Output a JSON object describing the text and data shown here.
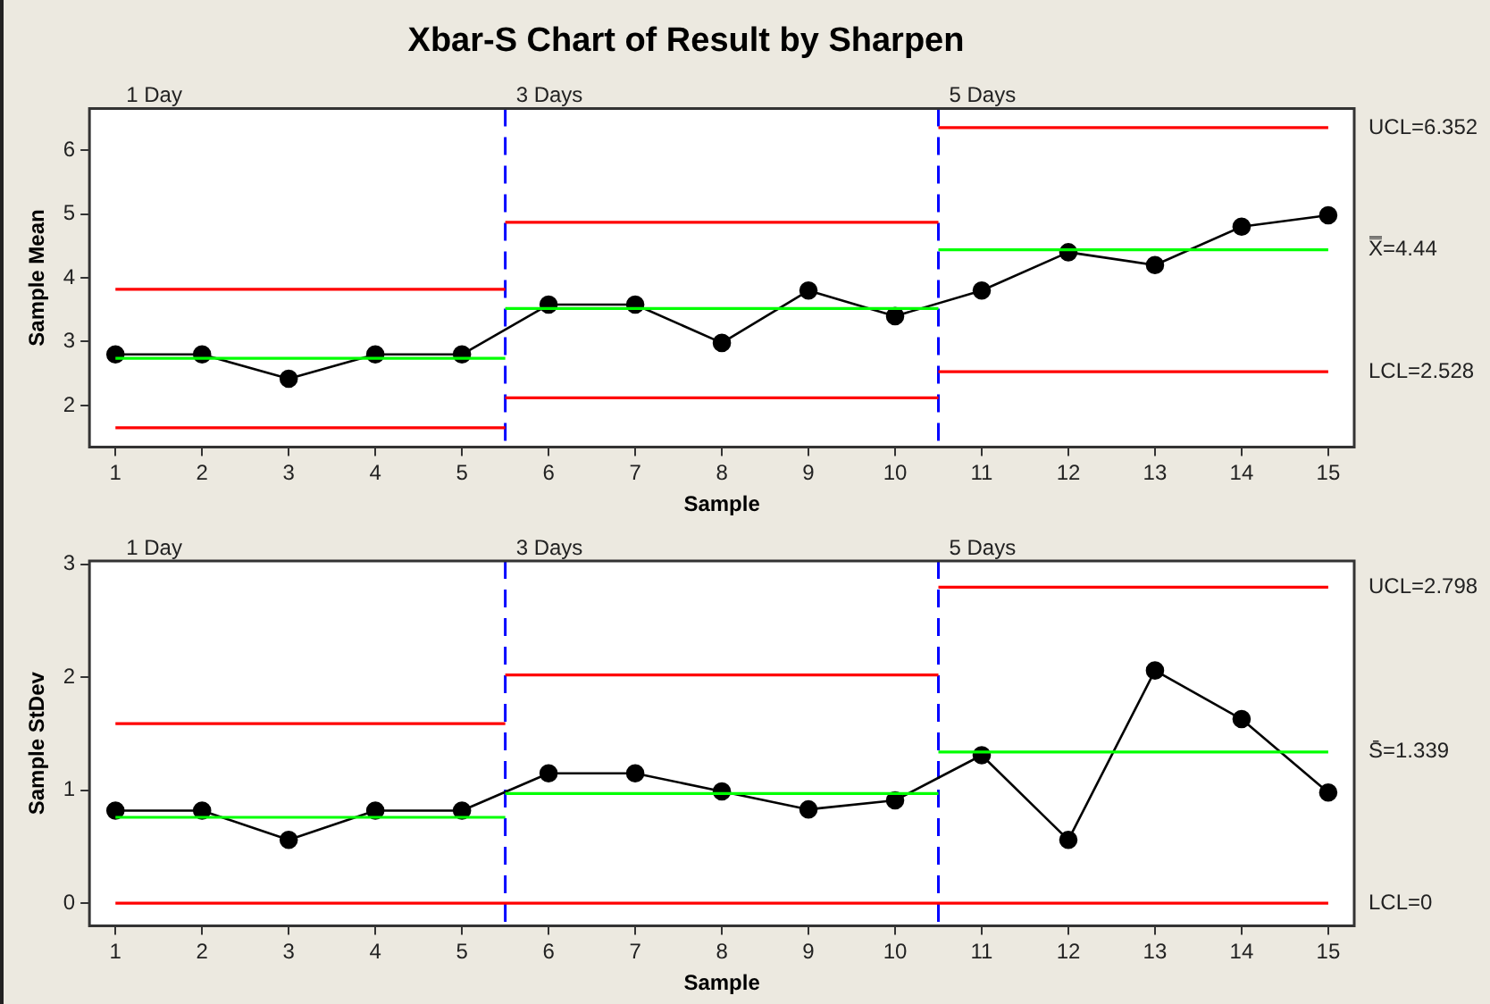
{
  "chart_data": [
    {
      "type": "line",
      "title": "Xbar-S Chart of Result by Sharpen",
      "xlabel": "Sample",
      "ylabel": "Sample Mean",
      "xlim": [
        0.7,
        15.3
      ],
      "xticks": [
        1,
        2,
        3,
        4,
        5,
        6,
        7,
        8,
        9,
        10,
        11,
        12,
        13,
        14,
        15
      ],
      "ylim": [
        1.35,
        6.65
      ],
      "yticks": [
        2,
        3,
        4,
        5,
        6
      ],
      "grid": false,
      "legend": false,
      "series": [
        {
          "type": "line",
          "color": "#ff0000",
          "marker": "none",
          "x": [
            1,
            5.5
          ],
          "values": [
            3.82,
            3.82
          ]
        },
        {
          "type": "line",
          "color": "#ff0000",
          "marker": "none",
          "x": [
            5.5,
            10.5
          ],
          "values": [
            4.87,
            4.87
          ]
        },
        {
          "type": "line",
          "color": "#ff0000",
          "marker": "none",
          "x": [
            10.5,
            15
          ],
          "values": [
            6.352,
            6.352
          ]
        },
        {
          "type": "line",
          "color": "#00ff00",
          "marker": "none",
          "x": [
            1,
            5.5
          ],
          "values": [
            2.74,
            2.74
          ]
        },
        {
          "type": "line",
          "color": "#00ff00",
          "marker": "none",
          "x": [
            5.5,
            10.5
          ],
          "values": [
            3.52,
            3.52
          ]
        },
        {
          "type": "line",
          "color": "#00ff00",
          "marker": "none",
          "x": [
            10.5,
            15
          ],
          "values": [
            4.44,
            4.44
          ]
        },
        {
          "type": "line",
          "color": "#ff0000",
          "marker": "none",
          "x": [
            1,
            5.5
          ],
          "values": [
            1.65,
            1.65
          ]
        },
        {
          "type": "line",
          "color": "#ff0000",
          "marker": "none",
          "x": [
            5.5,
            10.5
          ],
          "values": [
            2.12,
            2.12
          ]
        },
        {
          "type": "line",
          "color": "#ff0000",
          "marker": "none",
          "x": [
            10.5,
            15
          ],
          "values": [
            2.528,
            2.528
          ]
        },
        {
          "type": "line",
          "color": "#000000",
          "marker": "circle",
          "x": [
            1,
            2,
            3,
            4,
            5,
            6,
            7,
            8,
            9,
            10,
            11,
            12,
            13,
            14,
            15
          ],
          "values": [
            2.8,
            2.8,
            2.42,
            2.8,
            2.8,
            3.58,
            3.58,
            2.98,
            3.8,
            3.4,
            3.8,
            4.4,
            4.2,
            4.8,
            4.98
          ]
        }
      ],
      "ref_lines": [
        {
          "axis": "x",
          "value": 5.5,
          "color": "#0000ff",
          "line_style": "dashed"
        },
        {
          "axis": "x",
          "value": 10.5,
          "color": "#0000ff",
          "line_style": "dashed"
        }
      ],
      "annotations": [
        "1 Day",
        "3 Days",
        "5 Days",
        "UCL=6.352",
        "X̿=4.44",
        "LCL=2.528"
      ]
    },
    {
      "type": "line",
      "xlabel": "Sample",
      "ylabel": "Sample StDev",
      "xlim": [
        0.7,
        15.3
      ],
      "xticks": [
        1,
        2,
        3,
        4,
        5,
        6,
        7,
        8,
        9,
        10,
        11,
        12,
        13,
        14,
        15
      ],
      "ylim": [
        -0.2,
        3.03
      ],
      "yticks": [
        0,
        1,
        2,
        3
      ],
      "grid": false,
      "legend": false,
      "series": [
        {
          "type": "line",
          "color": "#ff0000",
          "marker": "none",
          "x": [
            1,
            5.5
          ],
          "values": [
            1.59,
            1.59
          ]
        },
        {
          "type": "line",
          "color": "#ff0000",
          "marker": "none",
          "x": [
            5.5,
            10.5
          ],
          "values": [
            2.02,
            2.02
          ]
        },
        {
          "type": "line",
          "color": "#ff0000",
          "marker": "none",
          "x": [
            10.5,
            15
          ],
          "values": [
            2.798,
            2.798
          ]
        },
        {
          "type": "line",
          "color": "#00ff00",
          "marker": "none",
          "x": [
            1,
            5.5
          ],
          "values": [
            0.76,
            0.76
          ]
        },
        {
          "type": "line",
          "color": "#00ff00",
          "marker": "none",
          "x": [
            5.5,
            10.5
          ],
          "values": [
            0.97,
            0.97
          ]
        },
        {
          "type": "line",
          "color": "#00ff00",
          "marker": "none",
          "x": [
            10.5,
            15
          ],
          "values": [
            1.339,
            1.339
          ]
        },
        {
          "type": "line",
          "color": "#ff0000",
          "marker": "none",
          "x": [
            1,
            15
          ],
          "values": [
            0,
            0
          ]
        },
        {
          "type": "line",
          "color": "#000000",
          "marker": "circle",
          "x": [
            1,
            2,
            3,
            4,
            5,
            6,
            7,
            8,
            9,
            10,
            11,
            12,
            13,
            14,
            15
          ],
          "values": [
            0.82,
            0.82,
            0.56,
            0.82,
            0.82,
            1.15,
            1.15,
            0.99,
            0.83,
            0.91,
            1.31,
            0.56,
            2.06,
            1.63,
            0.98
          ]
        }
      ],
      "ref_lines": [
        {
          "axis": "x",
          "value": 5.5,
          "color": "#0000ff",
          "line_style": "dashed"
        },
        {
          "axis": "x",
          "value": 10.5,
          "color": "#0000ff",
          "line_style": "dashed"
        }
      ],
      "annotations": [
        "1 Day",
        "3 Days",
        "5 Days",
        "UCL=2.798",
        "S̄=1.339",
        "LCL=0"
      ]
    }
  ]
}
